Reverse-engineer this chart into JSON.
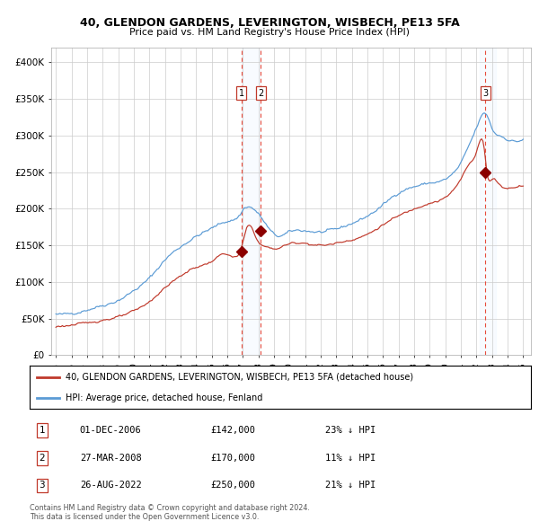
{
  "title1": "40, GLENDON GARDENS, LEVERINGTON, WISBECH, PE13 5FA",
  "title2": "Price paid vs. HM Land Registry's House Price Index (HPI)",
  "legend1": "40, GLENDON GARDENS, LEVERINGTON, WISBECH, PE13 5FA (detached house)",
  "legend2": "HPI: Average price, detached house, Fenland",
  "transactions": [
    {
      "num": 1,
      "date": "01-DEC-2006",
      "price": 142000,
      "pct": "23%",
      "dir": "↓"
    },
    {
      "num": 2,
      "date": "27-MAR-2008",
      "price": 170000,
      "pct": "11%",
      "dir": "↓"
    },
    {
      "num": 3,
      "date": "26-AUG-2022",
      "price": 250000,
      "pct": "21%",
      "dir": "↓"
    }
  ],
  "hpi_color": "#5b9bd5",
  "price_color": "#c0392b",
  "transaction_marker_color": "#8b0000",
  "shading_color": "#ddeeff",
  "dashed_line_color": "#e74c3c",
  "grid_color": "#cccccc",
  "background_color": "#ffffff",
  "ylim": [
    0,
    420000
  ],
  "yticks": [
    0,
    50000,
    100000,
    150000,
    200000,
    250000,
    300000,
    350000,
    400000
  ],
  "footnote1": "Contains HM Land Registry data © Crown copyright and database right 2024.",
  "footnote2": "This data is licensed under the Open Government Licence v3.0."
}
